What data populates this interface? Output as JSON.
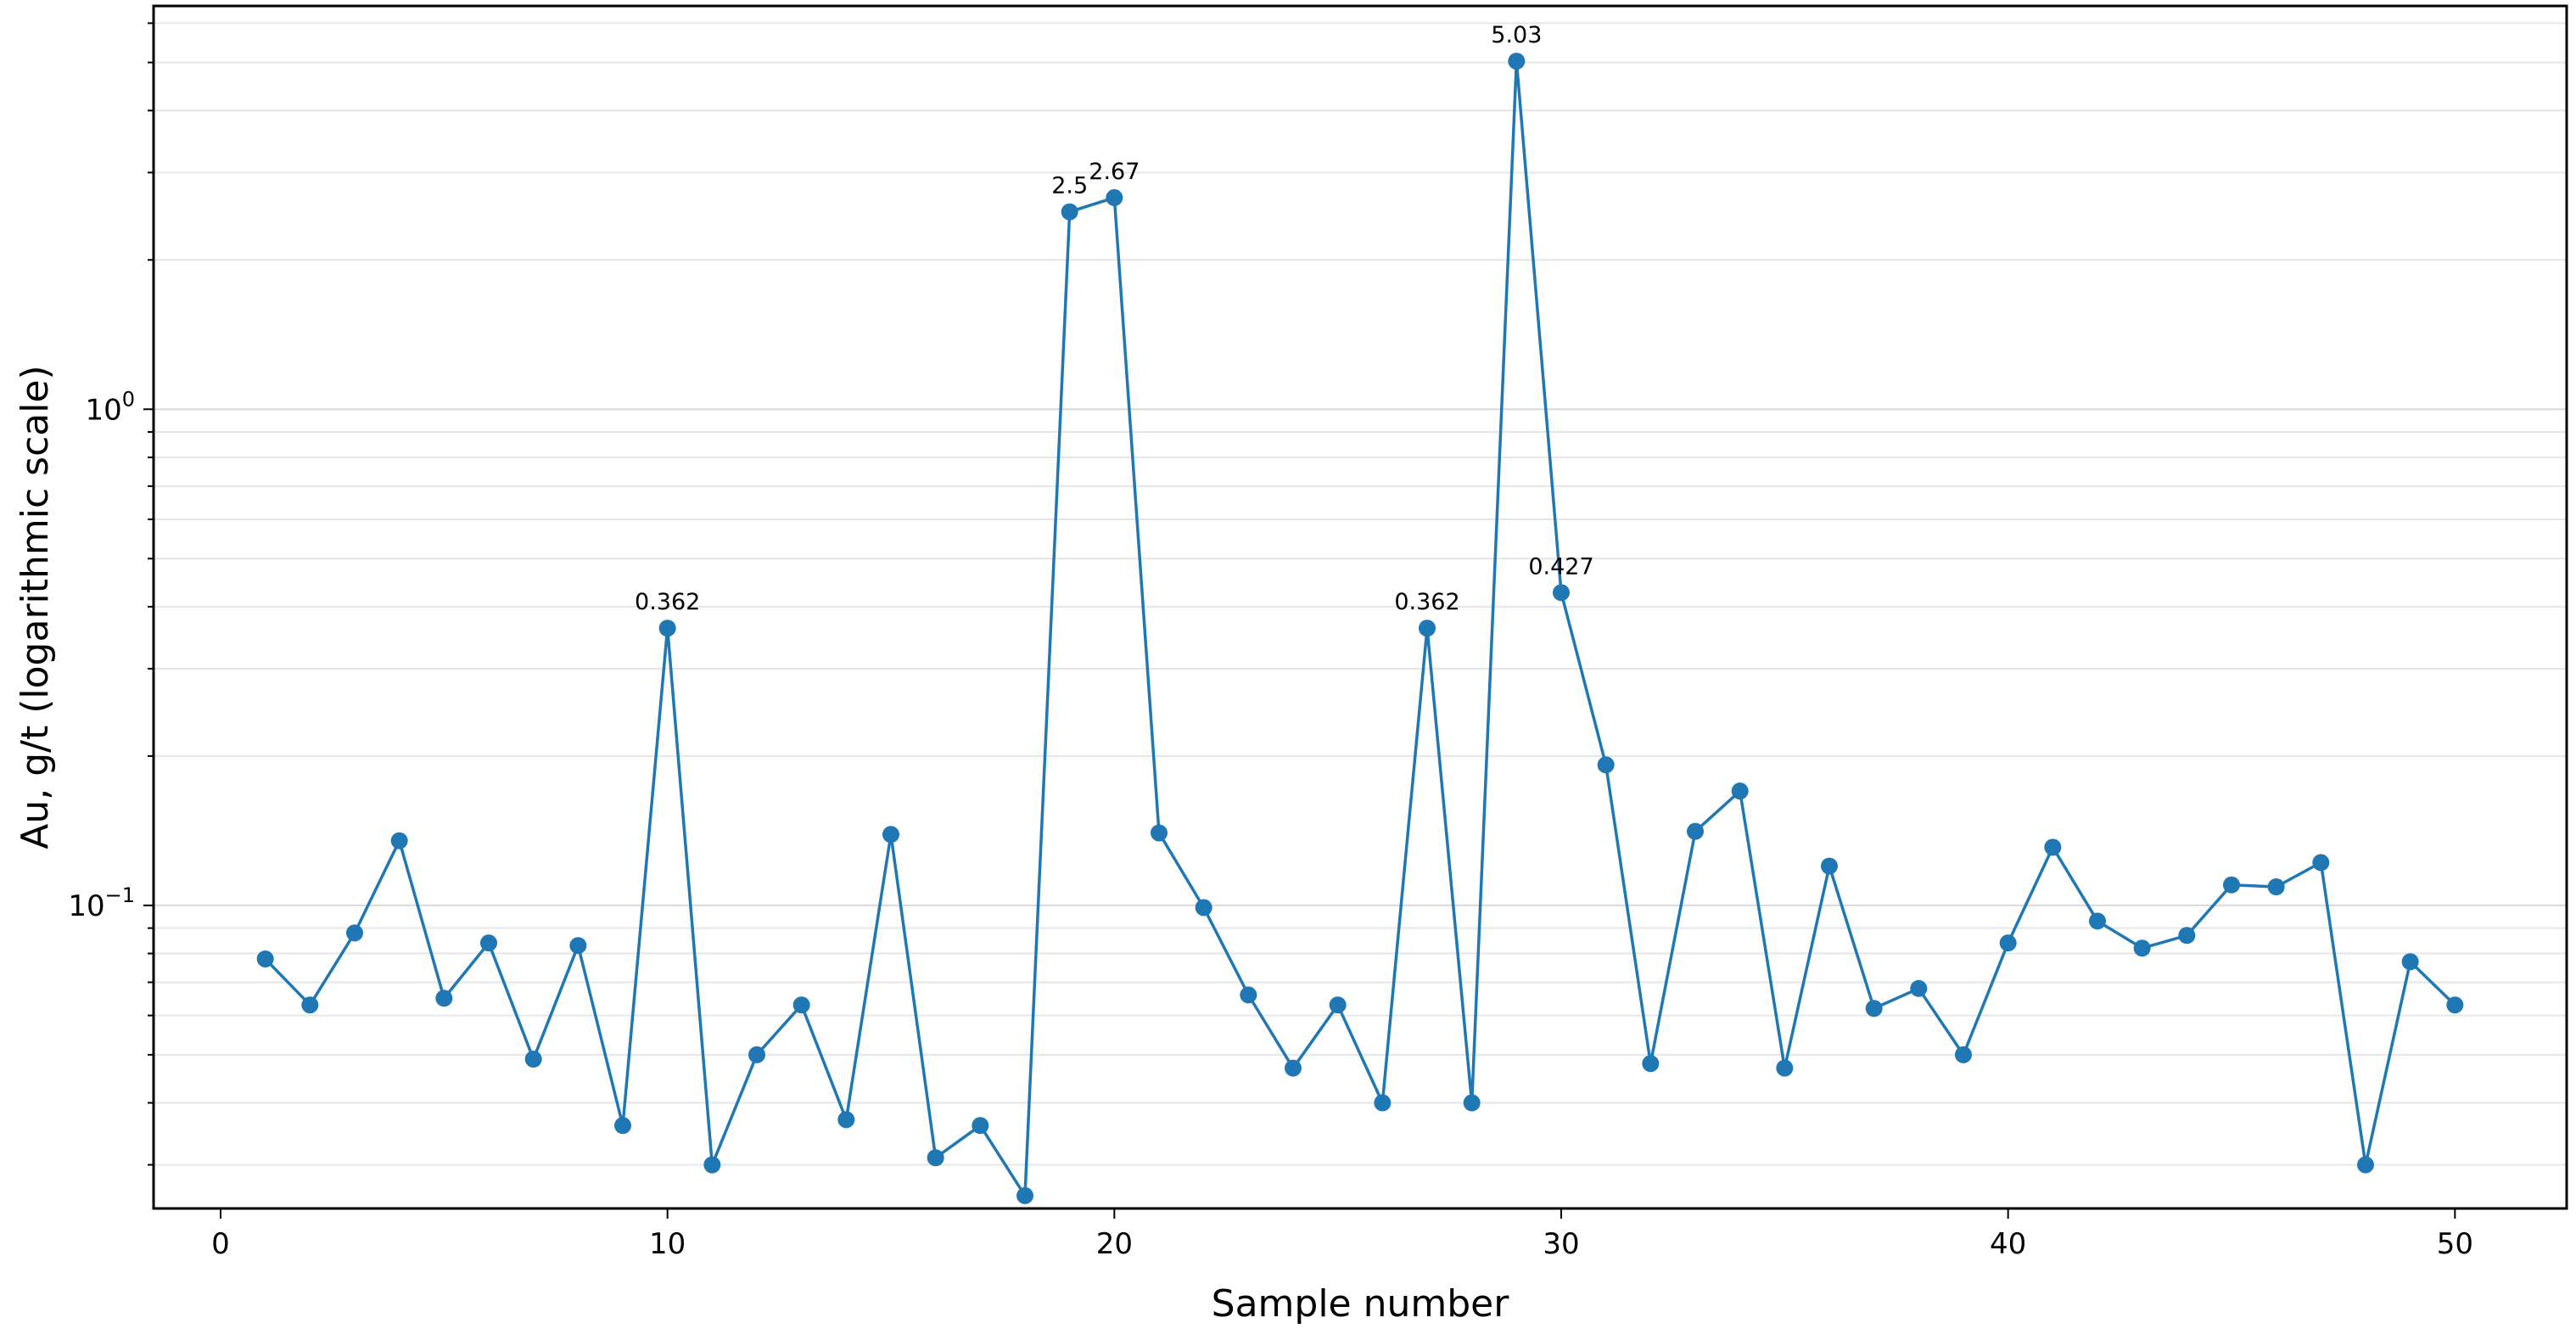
{
  "chart_data": {
    "type": "line",
    "xlabel": "Sample number",
    "ylabel": "Au, g/t (logarithmic scale)",
    "yscale": "log",
    "grid": "horizontal major and minor",
    "color": "#1f77b4",
    "xlim": [
      -1.5,
      52.5
    ],
    "ylim": [
      0.0245,
      6.5
    ],
    "x_ticks": [
      0,
      10,
      20,
      30,
      40,
      50
    ],
    "x_tick_labels": [
      "0",
      "10",
      "20",
      "30",
      "40",
      "50"
    ],
    "y_ticks": [
      {
        "value": 1,
        "base": "10",
        "exp": "0"
      },
      {
        "value": 0.1,
        "base": "10",
        "exp": "−1"
      }
    ],
    "series": [
      {
        "x": [
          1,
          2,
          3,
          4,
          5,
          6,
          7,
          8,
          9,
          10,
          11,
          12,
          13,
          14,
          15,
          16,
          17,
          18,
          19,
          20,
          21,
          22,
          23,
          24,
          25,
          26,
          27,
          28,
          29,
          30,
          31,
          32,
          33,
          34,
          35,
          36,
          37,
          38,
          39,
          40,
          41,
          42,
          43,
          44,
          45,
          46,
          47,
          48,
          49,
          50
        ],
        "values": [
          0.078,
          0.063,
          0.088,
          0.135,
          0.065,
          0.084,
          0.049,
          0.083,
          0.036,
          0.362,
          0.03,
          0.05,
          0.063,
          0.037,
          0.139,
          0.031,
          0.036,
          0.026,
          2.5,
          2.67,
          0.14,
          0.099,
          0.066,
          0.047,
          0.063,
          0.04,
          0.362,
          0.04,
          5.03,
          0.427,
          0.192,
          0.048,
          0.141,
          0.17,
          0.047,
          0.12,
          0.062,
          0.068,
          0.05,
          0.084,
          0.131,
          0.093,
          0.082,
          0.087,
          0.11,
          0.109,
          0.122,
          0.03,
          0.077,
          0.063
        ]
      }
    ],
    "annotations": [
      {
        "x": 10,
        "y": 0.362,
        "text": "0.362",
        "dx": 0
      },
      {
        "x": 19,
        "y": 2.5,
        "text": "2.5",
        "dx": 0
      },
      {
        "x": 20,
        "y": 2.67,
        "text": "2.67",
        "dx": 0
      },
      {
        "x": 27,
        "y": 0.362,
        "text": "0.362",
        "dx": 0
      },
      {
        "x": 29,
        "y": 5.03,
        "text": "5.03",
        "dx": 0
      },
      {
        "x": 30,
        "y": 0.427,
        "text": "0.427",
        "dx": 0
      }
    ]
  }
}
